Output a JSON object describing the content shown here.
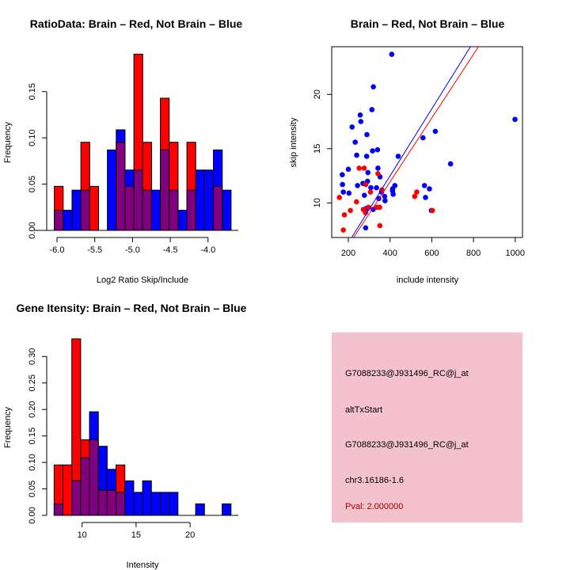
{
  "chart_data": [
    {
      "type": "bar",
      "subtype": "overlaid-histogram",
      "title": "RatioData: Brain – Red, Not Brain – Blue",
      "xlabel": "Log2 Ratio Skip/Include",
      "ylabel": "Frequency",
      "bin_start": -6.035,
      "bin_width": 0.117,
      "xticks": [
        "-6.0",
        "-5.5",
        "-5.0",
        "-4.5",
        "-4.0"
      ],
      "yticks": [
        "0.00",
        "0.05",
        "0.10",
        "0.15"
      ],
      "series": [
        {
          "name": "Brain",
          "color": "#ff0000",
          "total": 21,
          "counts": [
            1,
            0,
            0,
            2,
            1,
            0,
            0,
            2,
            1,
            4,
            2,
            0,
            3,
            2,
            0,
            2,
            0,
            0,
            1,
            0
          ]
        },
        {
          "name": "Not Brain",
          "color": "#0000ff",
          "total": 46,
          "counts": [
            1,
            1,
            2,
            2,
            0,
            0,
            4,
            5,
            3,
            3,
            2,
            2,
            4,
            2,
            1,
            2,
            3,
            3,
            4,
            2
          ]
        }
      ],
      "overlap_color": "#800080"
    },
    {
      "type": "scatter",
      "title": "Brain – Red, Not Brain – Blue",
      "xlabel": "include intensity",
      "ylabel": "skip intensity",
      "xlim": [
        120,
        1035
      ],
      "ylim": [
        6.8,
        24.4
      ],
      "xticks": [
        "200",
        "400",
        "600",
        "800",
        "1000"
      ],
      "yticks": [
        "10",
        "15",
        "20"
      ],
      "series": [
        {
          "name": "Not Brain",
          "color": "#0000ff",
          "points": [
            [
              408,
              23.7
            ],
            [
              320,
              20.7
            ],
            [
              313,
              18.6
            ],
            [
              257,
              18.1
            ],
            [
              260,
              17.5
            ],
            [
              218,
              17.0
            ],
            [
              289,
              16.3
            ],
            [
              233,
              15.6
            ],
            [
              558,
              16.0
            ],
            [
              617,
              16.6
            ],
            [
              999,
              17.7
            ],
            [
              316,
              14.8
            ],
            [
              340,
              14.9
            ],
            [
              240,
              14.4
            ],
            [
              288,
              14.3
            ],
            [
              439,
              14.3
            ],
            [
              690,
              13.6
            ],
            [
              200,
              13.1
            ],
            [
              171,
              12.6
            ],
            [
              342,
              13.2
            ],
            [
              294,
              12.8
            ],
            [
              352,
              12.4
            ],
            [
              172,
              11.7
            ],
            [
              244,
              11.6
            ],
            [
              270,
              11.8
            ],
            [
              292,
              12.0
            ],
            [
              308,
              11.4
            ],
            [
              335,
              11.4
            ],
            [
              176,
              11.0
            ],
            [
              203,
              10.9
            ],
            [
              277,
              10.7
            ],
            [
              359,
              11.0
            ],
            [
              374,
              10.6
            ],
            [
              376,
              10.2
            ],
            [
              346,
              10.4
            ],
            [
              412,
              11.3
            ],
            [
              412,
              11.1
            ],
            [
              415,
              10.8
            ],
            [
              423,
              11.6
            ],
            [
              565,
              11.6
            ],
            [
              589,
              11.3
            ],
            [
              570,
              10.5
            ],
            [
              598,
              9.3
            ],
            [
              287,
              9.5
            ],
            [
              319,
              9.4
            ],
            [
              283,
              7.7
            ]
          ],
          "fit": {
            "slope": 0.0309,
            "intercept": 0.13
          }
        },
        {
          "name": "Brain",
          "color": "#ff0000",
          "points": [
            [
              157,
              10.5
            ],
            [
              252,
              13.2
            ],
            [
              276,
              13.2
            ],
            [
              342,
              12.7
            ],
            [
              306,
              11.0
            ],
            [
              361,
              11.2
            ],
            [
              239,
              10.1
            ],
            [
              210,
              9.3
            ],
            [
              272,
              9.4
            ],
            [
              282,
              9.1
            ],
            [
              297,
              9.6
            ],
            [
              337,
              9.6
            ],
            [
              350,
              9.6
            ],
            [
              181,
              8.9
            ],
            [
              176,
              7.5
            ],
            [
              351,
              7.9
            ],
            [
              518,
              10.6
            ],
            [
              528,
              11.0
            ],
            [
              603,
              9.3
            ],
            [
              284,
              11.7
            ]
          ],
          "fit": {
            "slope": 0.0294,
            "intercept": 0.18
          }
        }
      ]
    },
    {
      "type": "bar",
      "subtype": "overlaid-histogram",
      "title": "Gene Itensity: Brain – Red, Not Brain – Blue",
      "xlabel": "Intensity",
      "ylabel": "Frequency",
      "bin_start": 7.41,
      "bin_width": 0.819,
      "xticks": [
        "10",
        "15",
        "20"
      ],
      "yticks": [
        "0.00",
        "0.05",
        "0.10",
        "0.15",
        "0.20",
        "0.25",
        "0.30"
      ],
      "series": [
        {
          "name": "Brain",
          "color": "#ff0000",
          "total": 21,
          "counts": [
            2,
            2,
            7,
            3,
            3,
            1,
            1,
            2,
            0,
            0,
            0,
            0,
            0,
            0,
            0,
            0,
            0,
            0,
            0,
            0
          ]
        },
        {
          "name": "Not Brain",
          "color": "#0000ff",
          "total": 46,
          "counts": [
            1,
            0,
            3,
            5,
            9,
            6,
            4,
            2,
            3,
            2,
            3,
            2,
            2,
            2,
            0,
            0,
            1,
            0,
            0,
            1
          ]
        }
      ],
      "overlap_color": "#800080"
    }
  ],
  "info_panel": {
    "background": "#f4c2cd",
    "lines": [
      "G7088233@J931496_RC@j_at",
      "altTxStart",
      "G7088233@J931496_RC@j_at",
      "chr3.16186-1.6"
    ],
    "pval": "Pval: 2.000000",
    "pval_color": "#a00000"
  }
}
